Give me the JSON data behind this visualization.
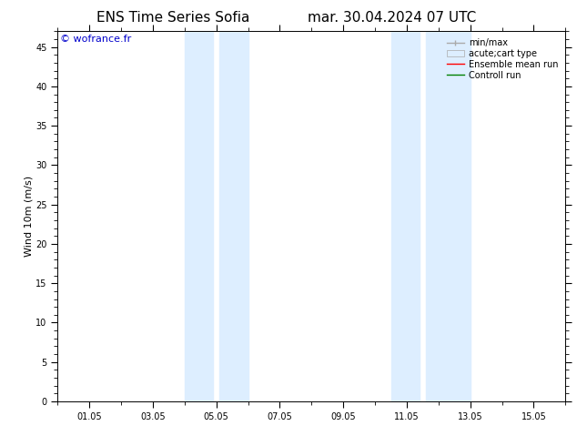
{
  "title_left": "ENS Time Series Sofia",
  "title_right": "mar. 30.04.2024 07 UTC",
  "ylabel": "Wind 10m (m/s)",
  "watermark": "© wofrance.fr",
  "xlim_start": 0,
  "xlim_end": 16,
  "ylim": [
    0,
    47
  ],
  "yticks": [
    0,
    5,
    10,
    15,
    20,
    25,
    30,
    35,
    40,
    45
  ],
  "xtick_labels": [
    "01.05",
    "03.05",
    "05.05",
    "07.05",
    "09.05",
    "11.05",
    "13.05",
    "15.05"
  ],
  "xtick_positions": [
    1,
    3,
    5,
    7,
    9,
    11,
    13,
    15
  ],
  "shaded_regions": [
    [
      4.0,
      4.9
    ],
    [
      5.1,
      6.0
    ],
    [
      10.5,
      11.4
    ],
    [
      11.6,
      13.0
    ]
  ],
  "shaded_color": "#ddeeff",
  "background_color": "#ffffff",
  "title_fontsize": 11,
  "watermark_color": "#0000cc",
  "watermark_fontsize": 8,
  "tick_fontsize": 7,
  "ylabel_fontsize": 8,
  "legend_fontsize": 7
}
